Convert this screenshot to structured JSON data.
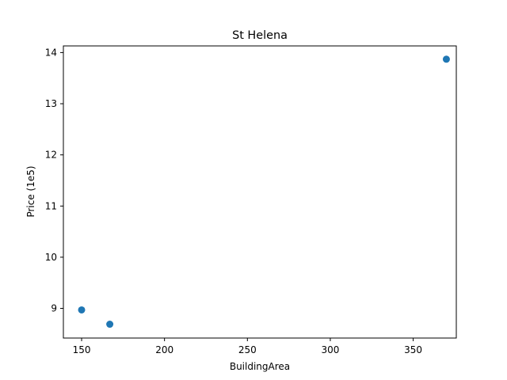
{
  "chart_data": {
    "type": "scatter",
    "title": "St Helena",
    "xlabel": "BuildingArea",
    "ylabel": "Price (1e5)",
    "xlim": [
      139,
      376
    ],
    "ylim": [
      8.42,
      14.13
    ],
    "xticks": [
      150,
      200,
      250,
      300,
      350
    ],
    "yticks": [
      9,
      10,
      11,
      12,
      13,
      14
    ],
    "grid": false,
    "color": "#1f77b4",
    "points": [
      {
        "x": 150,
        "y": 8.97
      },
      {
        "x": 167,
        "y": 8.69
      },
      {
        "x": 370,
        "y": 13.87
      }
    ]
  }
}
